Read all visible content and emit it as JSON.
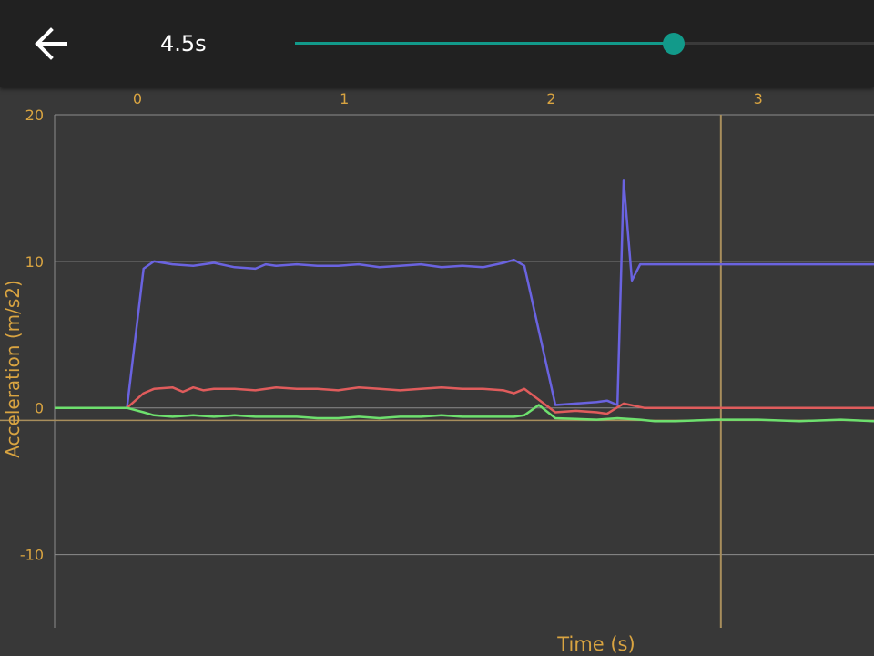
{
  "header": {
    "back_icon": "arrow-left-icon",
    "time_label": "4.5s",
    "slider_value_fraction": 0.654
  },
  "colors": {
    "background": "#383838",
    "toolbar": "#212121",
    "accent": "#129a8a",
    "axis_text": "#d9a441",
    "grid": "#8c8c8c",
    "cursor": "#a88e5c"
  },
  "chart_data": {
    "type": "line",
    "xlabel": "Time (s)",
    "ylabel": "Acceleration (m/s2)",
    "xlim": [
      -0.4,
      3.56
    ],
    "ylim": [
      -15,
      20
    ],
    "x_ticks": [
      "0",
      "1",
      "2",
      "3"
    ],
    "x_tick_values": [
      0,
      1,
      2,
      3
    ],
    "y_ticks": [
      "20",
      "10",
      "0",
      "-10"
    ],
    "y_tick_values": [
      20,
      10,
      0,
      -10
    ],
    "grid": true,
    "cursor_x": 2.82,
    "series": [
      {
        "color": "#6a63e0",
        "x": [
          -0.4,
          -0.05,
          0.03,
          0.08,
          0.17,
          0.27,
          0.37,
          0.47,
          0.57,
          0.62,
          0.67,
          0.77,
          0.87,
          0.97,
          1.07,
          1.17,
          1.27,
          1.37,
          1.47,
          1.57,
          1.67,
          1.77,
          1.82,
          1.87,
          2.02,
          2.12,
          2.22,
          2.27,
          2.32,
          2.35,
          2.39,
          2.43,
          2.48,
          2.6,
          2.8,
          3.0,
          3.2,
          3.4,
          3.56
        ],
        "y": [
          0,
          0,
          9.5,
          10,
          9.8,
          9.7,
          9.9,
          9.6,
          9.5,
          9.8,
          9.7,
          9.8,
          9.7,
          9.7,
          9.8,
          9.6,
          9.7,
          9.8,
          9.6,
          9.7,
          9.6,
          9.9,
          10.1,
          9.7,
          0.2,
          0.3,
          0.4,
          0.5,
          0.2,
          15.5,
          8.7,
          9.8,
          9.8,
          9.8,
          9.8,
          9.8,
          9.8,
          9.8,
          9.8
        ]
      },
      {
        "color": "#e05c5c",
        "x": [
          -0.4,
          -0.05,
          0.03,
          0.08,
          0.17,
          0.22,
          0.27,
          0.32,
          0.37,
          0.47,
          0.57,
          0.67,
          0.77,
          0.87,
          0.97,
          1.07,
          1.17,
          1.27,
          1.37,
          1.47,
          1.57,
          1.67,
          1.77,
          1.82,
          1.87,
          2.02,
          2.12,
          2.22,
          2.27,
          2.35,
          2.45,
          2.6,
          2.8,
          3.0,
          3.2,
          3.4,
          3.56
        ],
        "y": [
          0,
          0,
          1.0,
          1.3,
          1.4,
          1.1,
          1.4,
          1.2,
          1.3,
          1.3,
          1.2,
          1.4,
          1.3,
          1.3,
          1.2,
          1.4,
          1.3,
          1.2,
          1.3,
          1.4,
          1.3,
          1.3,
          1.2,
          1.0,
          1.3,
          -0.3,
          -0.2,
          -0.3,
          -0.4,
          0.3,
          0,
          0,
          0,
          0,
          0,
          0,
          0
        ]
      },
      {
        "color": "#6ee06e",
        "x": [
          -0.4,
          -0.05,
          0.03,
          0.08,
          0.17,
          0.27,
          0.37,
          0.47,
          0.57,
          0.67,
          0.77,
          0.87,
          0.97,
          1.07,
          1.17,
          1.27,
          1.37,
          1.47,
          1.57,
          1.67,
          1.77,
          1.82,
          1.87,
          1.94,
          2.02,
          2.22,
          2.32,
          2.43,
          2.5,
          2.6,
          2.8,
          3.0,
          3.2,
          3.4,
          3.56
        ],
        "y": [
          0,
          0,
          -0.3,
          -0.5,
          -0.6,
          -0.5,
          -0.6,
          -0.5,
          -0.6,
          -0.6,
          -0.6,
          -0.7,
          -0.7,
          -0.6,
          -0.7,
          -0.6,
          -0.6,
          -0.5,
          -0.6,
          -0.6,
          -0.6,
          -0.6,
          -0.5,
          0.2,
          -0.7,
          -0.8,
          -0.7,
          -0.8,
          -0.9,
          -0.9,
          -0.8,
          -0.8,
          -0.9,
          -0.8,
          -0.9
        ]
      }
    ]
  }
}
